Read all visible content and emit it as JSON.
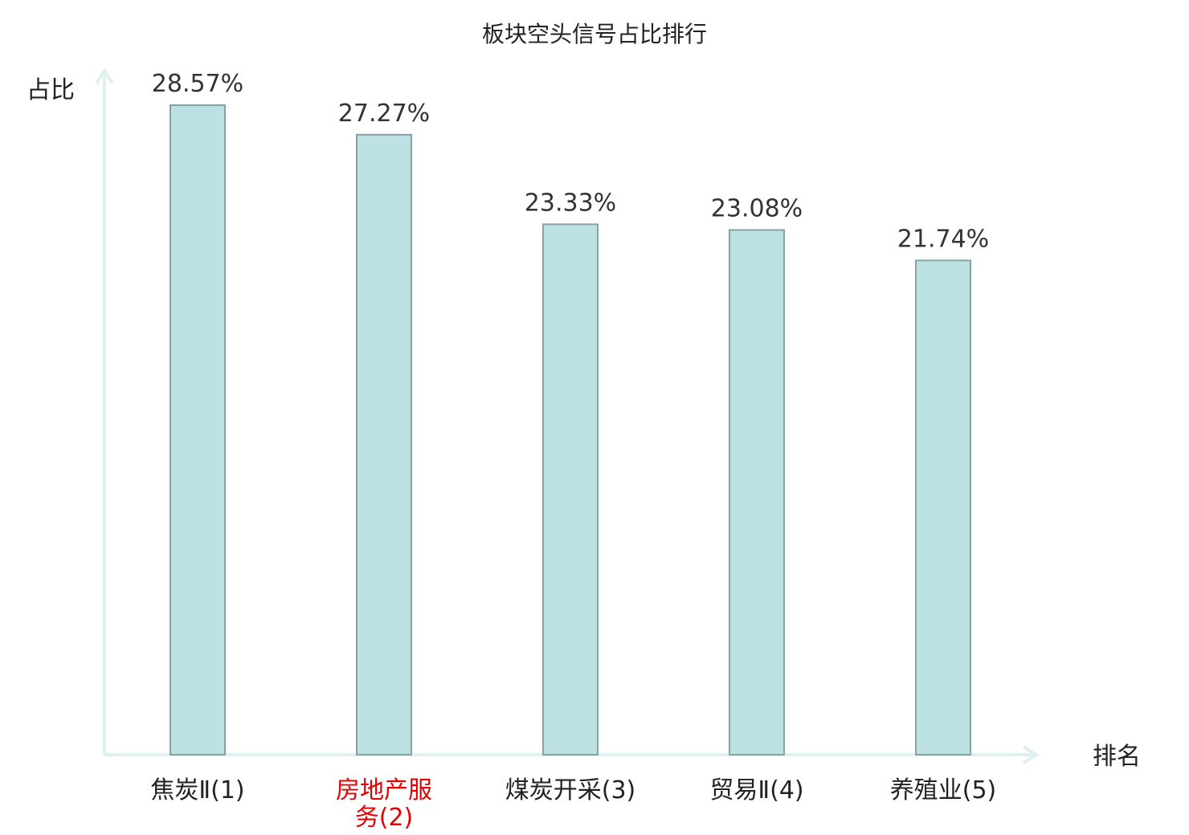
{
  "chart_data": {
    "type": "bar",
    "title": "板块空头信号占比排行",
    "ylabel": "占比",
    "xlabel": "排名",
    "categories": [
      [
        "焦炭Ⅱ(1)"
      ],
      [
        "房地产服",
        "务(2)"
      ],
      [
        "煤炭开采(3)"
      ],
      [
        "贸易Ⅱ(4)"
      ],
      [
        "养殖业(5)"
      ]
    ],
    "values": [
      28.57,
      27.27,
      23.33,
      23.08,
      21.74
    ],
    "value_labels": [
      "28.57%",
      "27.27%",
      "23.33%",
      "23.08%",
      "21.74%"
    ],
    "highlight_index": 1,
    "ylim": [
      0,
      29
    ],
    "grid": false,
    "legend": "none"
  },
  "colors": {
    "bar_fill": "#bde0e2",
    "bar_stroke": "#84a3a5",
    "axis": "#dff1ef",
    "text": "#222222",
    "value_text": "#333333",
    "highlight_text": "#e60000"
  }
}
